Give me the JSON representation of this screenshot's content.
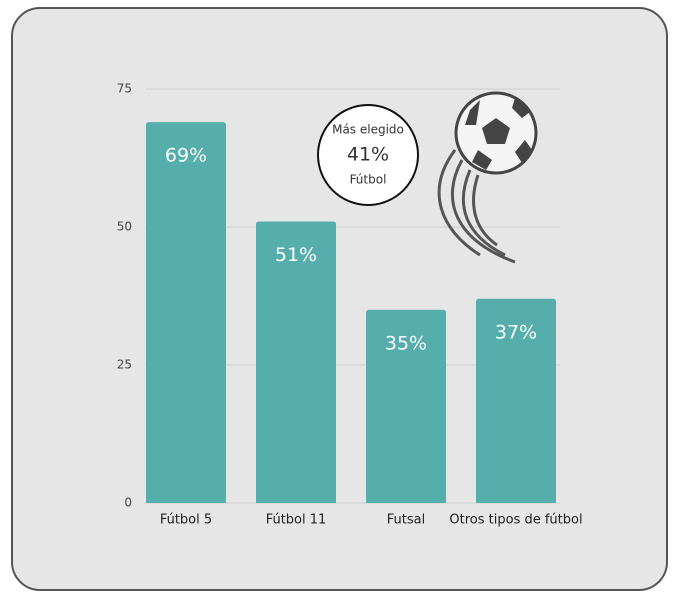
{
  "chart_data": {
    "type": "bar",
    "categories": [
      "Fútbol 5",
      "Fútbol 11",
      "Futsal",
      "Otros tipos de fútbol"
    ],
    "values": [
      69,
      51,
      35,
      37
    ],
    "value_labels": [
      "69%",
      "51%",
      "35%",
      "37%"
    ],
    "color": "#55aeab",
    "ylim": [
      0,
      75
    ],
    "yticks": [
      0,
      25,
      50,
      75
    ],
    "grid": true,
    "annotation": {
      "title": "Más elegido",
      "value": "41%",
      "label": "Fútbol"
    }
  }
}
